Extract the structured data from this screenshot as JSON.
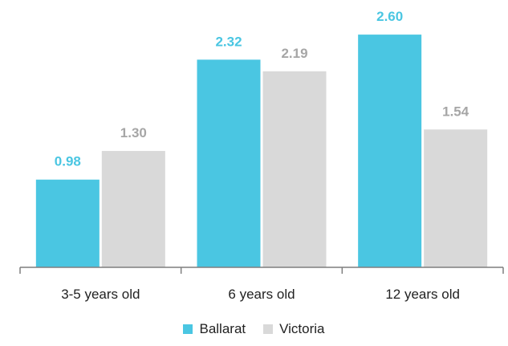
{
  "colors": {
    "ballarat": "#4AC6E2",
    "victoria": "#D9D9D9",
    "victoria_label": "#A6A6A6",
    "axis": "#7F7F7F"
  },
  "chart_data": {
    "type": "bar",
    "categories": [
      "3-5 years old",
      "6 years old",
      "12 years old"
    ],
    "series": [
      {
        "name": "Ballarat",
        "values": [
          0.98,
          2.32,
          2.6
        ]
      },
      {
        "name": "Victoria",
        "values": [
          1.3,
          2.19,
          1.54
        ]
      }
    ],
    "value_labels": [
      [
        "0.98",
        "2.32",
        "2.60"
      ],
      [
        "1.30",
        "2.19",
        "1.54"
      ]
    ],
    "ylim": [
      0,
      3.0
    ],
    "grid": false,
    "legend": "bottom"
  }
}
